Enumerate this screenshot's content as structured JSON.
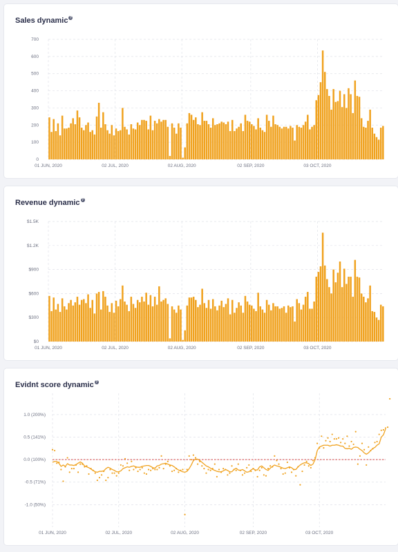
{
  "colors": {
    "bar": "#f0a21f",
    "line": "#f0a21f",
    "baseline": "#cc2a2a",
    "grid": "#dfe1e8"
  },
  "cards": [
    {
      "title": "Sales dynamic",
      "help_icon": "?"
    },
    {
      "title": "Revenue dynamic",
      "help_icon": "?"
    },
    {
      "title": "Evidnt score dynamic",
      "help_icon": "?"
    }
  ],
  "chart_data": [
    {
      "type": "bar",
      "title": "Sales dynamic",
      "yticks": [
        "0",
        "100",
        "200",
        "300",
        "400",
        "500",
        "600",
        "700"
      ],
      "ylim": [
        0,
        700
      ],
      "xticks": [
        "01 JUN, 2020",
        "02 JUL, 2020",
        "02 AUG, 2020",
        "02 SEP, 2020",
        "03 OCT, 2020"
      ],
      "xtick_index": [
        0,
        31,
        62,
        94,
        125
      ],
      "values": [
        245,
        160,
        235,
        165,
        210,
        140,
        255,
        180,
        180,
        185,
        210,
        240,
        205,
        285,
        245,
        185,
        170,
        200,
        215,
        160,
        170,
        145,
        250,
        330,
        185,
        275,
        205,
        170,
        150,
        200,
        140,
        180,
        165,
        170,
        300,
        190,
        175,
        145,
        205,
        180,
        175,
        215,
        200,
        230,
        230,
        225,
        175,
        255,
        170,
        225,
        210,
        235,
        220,
        230,
        230,
        190,
        20,
        210,
        185,
        150,
        210,
        185,
        10,
        70,
        210,
        270,
        260,
        230,
        245,
        205,
        200,
        275,
        225,
        225,
        205,
        185,
        240,
        200,
        205,
        210,
        220,
        215,
        205,
        220,
        165,
        230,
        165,
        180,
        190,
        210,
        165,
        260,
        225,
        220,
        205,
        195,
        175,
        240,
        185,
        170,
        160,
        260,
        225,
        190,
        255,
        205,
        200,
        190,
        180,
        190,
        190,
        180,
        195,
        185,
        110,
        200,
        190,
        185,
        200,
        220,
        260,
        175,
        190,
        200,
        345,
        375,
        450,
        635,
        510,
        410,
        370,
        290,
        410,
        335,
        340,
        400,
        305,
        380,
        300,
        415,
        380,
        270,
        460,
        370,
        365,
        240,
        190,
        185,
        225,
        290,
        185,
        150,
        130,
        115,
        185,
        195
      ],
      "xlabel": "",
      "ylabel": ""
    },
    {
      "type": "bar",
      "title": "Revenue dynamic",
      "yticks": [
        "$0",
        "$300",
        "$600",
        "$900",
        "$1.2K",
        "$1.5K"
      ],
      "ylim": [
        0,
        1500
      ],
      "xticks": [
        "01 JUN, 2020",
        "02 JUL, 2020",
        "02 AUG, 2020",
        "02 SEP, 2020",
        "03 OCT, 2020"
      ],
      "xtick_index": [
        0,
        31,
        62,
        94,
        125
      ],
      "values": [
        570,
        380,
        550,
        400,
        470,
        370,
        540,
        440,
        400,
        480,
        520,
        450,
        490,
        560,
        460,
        520,
        530,
        480,
        590,
        420,
        520,
        350,
        600,
        620,
        400,
        630,
        560,
        450,
        370,
        480,
        360,
        510,
        440,
        530,
        700,
        500,
        460,
        380,
        560,
        470,
        420,
        520,
        490,
        560,
        500,
        610,
        460,
        580,
        440,
        560,
        460,
        690,
        500,
        520,
        540,
        470,
        40,
        440,
        400,
        360,
        450,
        400,
        20,
        140,
        450,
        550,
        550,
        560,
        520,
        430,
        460,
        660,
        480,
        420,
        520,
        410,
        530,
        440,
        390,
        450,
        510,
        430,
        470,
        540,
        340,
        520,
        360,
        420,
        490,
        450,
        360,
        570,
        500,
        460,
        450,
        410,
        380,
        610,
        440,
        400,
        360,
        520,
        460,
        390,
        480,
        440,
        440,
        410,
        420,
        440,
        360,
        450,
        430,
        440,
        250,
        530,
        480,
        400,
        460,
        560,
        620,
        410,
        410,
        500,
        810,
        870,
        940,
        1360,
        950,
        780,
        680,
        600,
        900,
        740,
        860,
        1000,
        680,
        910,
        720,
        810,
        810,
        560,
        1020,
        810,
        800,
        600,
        560,
        490,
        540,
        700,
        380,
        370,
        300,
        270,
        460,
        440
      ],
      "xlabel": "",
      "ylabel": ""
    },
    {
      "type": "line",
      "title": "Evidnt score dynamic",
      "yticks": [
        "1.0 (200%)",
        "0.5 (141%)",
        "0.0 (100%)",
        "-0.5 (71%)",
        "-1.0 (50%)"
      ],
      "ytick_values": [
        1.0,
        0.5,
        0.0,
        -0.5,
        -1.0
      ],
      "ylim": [
        -1.5,
        1.35
      ],
      "baseline": 0.0,
      "xticks": [
        "01 JUN, 2020",
        "02 JUL, 2020",
        "02 AUG, 2020",
        "02 SEP, 2020",
        "03 OCT, 2020"
      ],
      "xtick_index": [
        0,
        31,
        62,
        94,
        125
      ],
      "series": [
        {
          "values": [
            -0.06,
            -0.04,
            -0.04,
            -0.08,
            -0.15,
            -0.12,
            -0.15,
            -0.09,
            -0.12,
            -0.12,
            -0.13,
            -0.11,
            -0.08,
            -0.05,
            -0.08,
            -0.14,
            -0.16,
            -0.18,
            -0.21,
            -0.24,
            -0.27,
            -0.28,
            -0.26,
            -0.26,
            -0.25,
            -0.2,
            -0.17,
            -0.19,
            -0.22,
            -0.24,
            -0.27,
            -0.27,
            -0.25,
            -0.2,
            -0.18,
            -0.16,
            -0.17,
            -0.15,
            -0.14,
            -0.16,
            -0.17,
            -0.17,
            -0.15,
            -0.14,
            -0.13,
            -0.13,
            -0.15,
            -0.18,
            -0.19,
            -0.14,
            -0.13,
            -0.1,
            -0.09,
            -0.08,
            -0.1,
            -0.12,
            -0.13,
            -0.16,
            -0.2,
            -0.23,
            -0.25,
            -0.27,
            -0.28,
            -0.26,
            -0.2,
            -0.12,
            -0.02,
            0.01,
            0.01,
            -0.02,
            -0.06,
            -0.1,
            -0.14,
            -0.16,
            -0.19,
            -0.22,
            -0.24,
            -0.26,
            -0.27,
            -0.27,
            -0.25,
            -0.22,
            -0.24,
            -0.27,
            -0.27,
            -0.22,
            -0.19,
            -0.23,
            -0.24,
            -0.22,
            -0.25,
            -0.28,
            -0.27,
            -0.23,
            -0.2,
            -0.23,
            -0.23,
            -0.16,
            -0.14,
            -0.18,
            -0.22,
            -0.24,
            -0.19,
            -0.15,
            -0.12,
            -0.14,
            -0.15,
            -0.17,
            -0.19,
            -0.2,
            -0.18,
            -0.16,
            -0.18,
            -0.22,
            -0.22,
            -0.16,
            -0.12,
            -0.09,
            -0.07,
            -0.07,
            -0.09,
            -0.13,
            -0.1,
            0.0,
            0.2,
            0.28,
            0.3,
            0.32,
            0.32,
            0.32,
            0.3,
            0.32,
            0.32,
            0.33,
            0.32,
            0.3,
            0.3,
            0.25,
            0.24,
            0.25,
            0.23,
            0.27,
            0.28,
            0.27,
            0.23,
            0.2,
            0.15,
            0.12,
            0.15,
            0.2,
            0.25,
            0.27,
            0.32,
            0.35,
            0.5,
            0.55,
            0.68
          ],
          "points": [
            0.22,
            0.2,
            -0.08,
            -0.06,
            -0.22,
            -0.48,
            -0.16,
            0.04,
            -0.28,
            -0.2,
            -0.2,
            -0.12,
            -0.28,
            -0.1,
            -0.1,
            -0.16,
            -0.14,
            -0.32,
            -0.2,
            -0.24,
            -0.3,
            -0.46,
            -0.4,
            -0.34,
            -0.26,
            -0.46,
            -0.4,
            -0.22,
            -0.3,
            -0.3,
            -0.36,
            -0.3,
            -0.12,
            -0.14,
            0.02,
            -0.08,
            -0.24,
            -0.04,
            -0.22,
            -0.18,
            -0.26,
            -0.22,
            -0.18,
            -0.3,
            -0.32,
            -0.22,
            -0.24,
            -0.2,
            -0.22,
            -0.22,
            -0.18,
            0.08,
            -0.2,
            -0.1,
            -0.04,
            -0.14,
            -0.26,
            -0.24,
            -0.2,
            -0.28,
            -0.24,
            -0.22,
            -1.22,
            -0.22,
            0.08,
            0.0,
            0.1,
            0.04,
            -0.1,
            -0.04,
            -0.14,
            -0.2,
            -0.3,
            -0.22,
            -0.24,
            -0.2,
            -0.1,
            -0.38,
            -0.22,
            -0.28,
            -0.2,
            -0.22,
            -0.34,
            -0.3,
            -0.14,
            -0.22,
            -0.24,
            -0.1,
            -0.24,
            -0.34,
            -0.3,
            -0.18,
            -0.12,
            -0.26,
            -0.2,
            -0.24,
            -0.38,
            -0.24,
            -0.18,
            -0.34,
            -0.36,
            -0.2,
            -0.14,
            -0.16,
            0.08,
            -0.02,
            -0.1,
            -0.2,
            -0.32,
            -0.3,
            -0.06,
            -0.18,
            -0.28,
            -0.22,
            -0.36,
            -0.16,
            -0.56,
            -0.26,
            -0.12,
            -0.04,
            -0.14,
            -0.18,
            -0.02,
            0.04,
            0.36,
            0.26,
            0.52,
            0.26,
            0.42,
            0.48,
            0.4,
            0.56,
            0.46,
            0.46,
            0.48,
            0.38,
            0.46,
            0.36,
            0.52,
            0.3,
            0.4,
            0.34,
            0.62,
            -0.1,
            0.08,
            0.36,
            0.22,
            -0.12,
            0.28,
            0.2,
            0.24,
            0.38,
            0.4,
            0.56,
            0.65,
            0.66,
            0.7,
            0.72,
            1.35
          ]
        }
      ],
      "xlabel": "",
      "ylabel": ""
    }
  ]
}
